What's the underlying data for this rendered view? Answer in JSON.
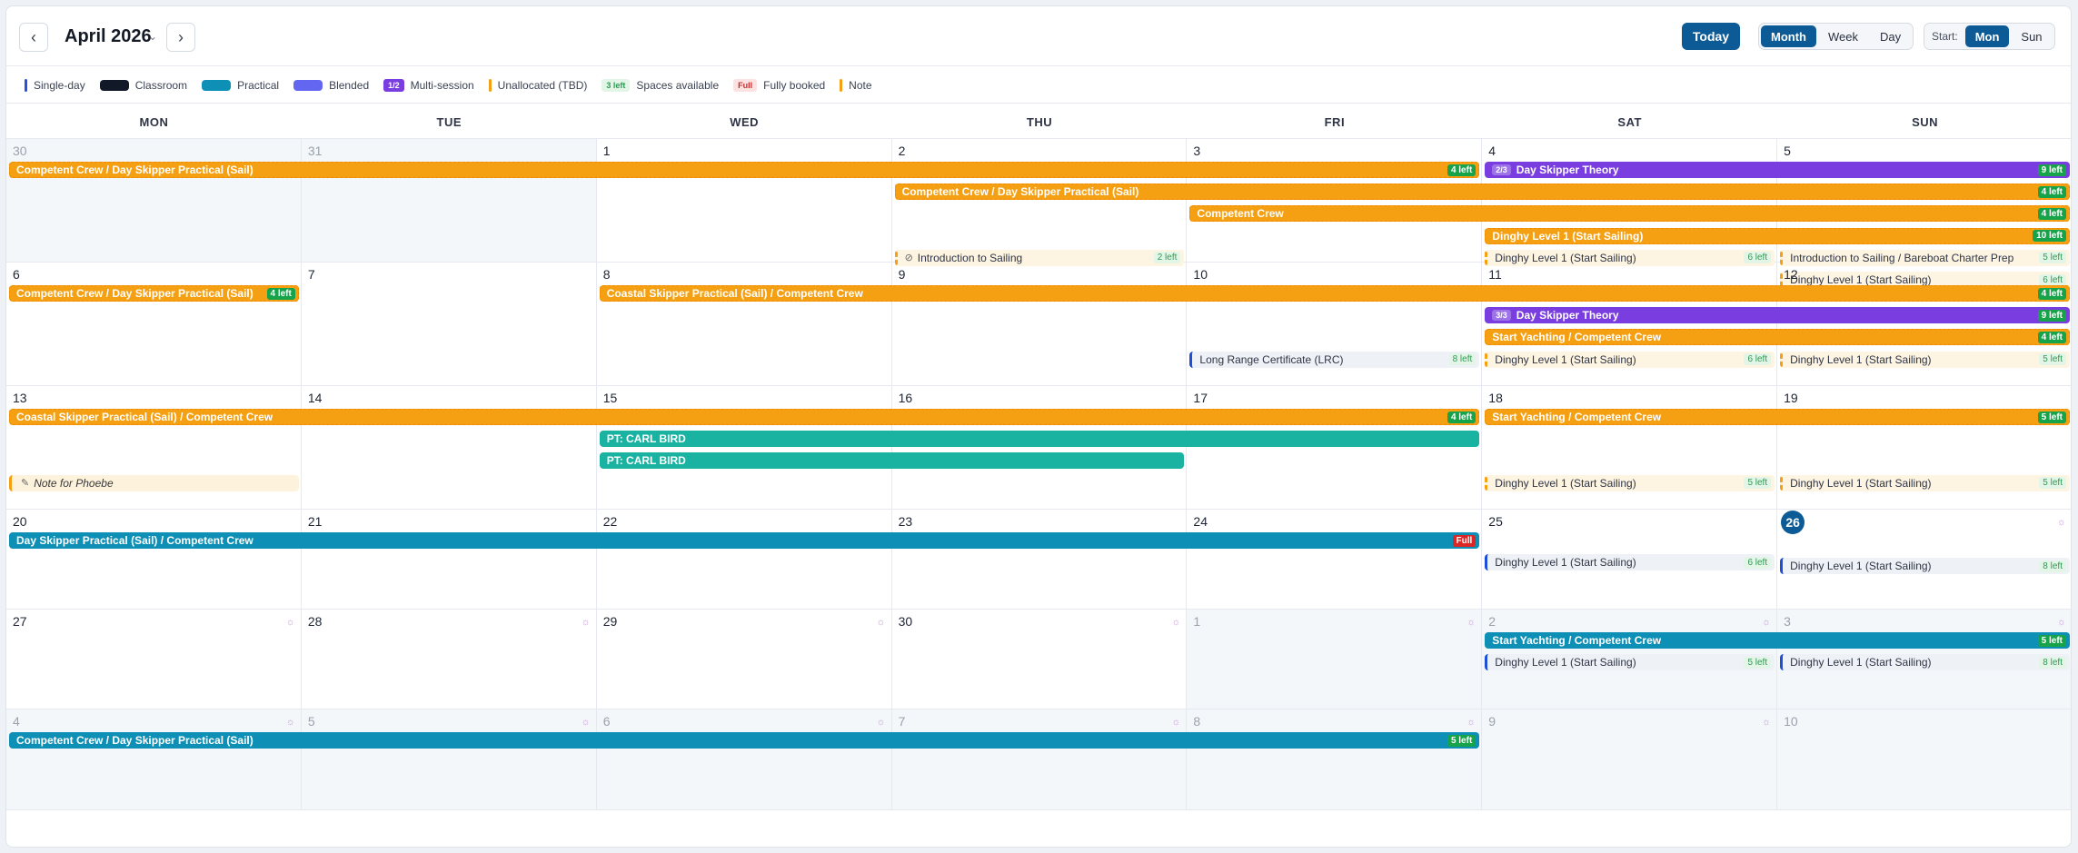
{
  "toolbar": {
    "prev_icon": "‹",
    "next_icon": "›",
    "month_title": "April 2026",
    "caret": "⌄",
    "today_label": "Today",
    "views": [
      "Month",
      "Week",
      "Day"
    ],
    "active_view": "Month",
    "start_label": "Start:",
    "start_options": [
      "Mon",
      "Sun"
    ],
    "active_start": "Mon"
  },
  "legend": [
    {
      "kind": "line",
      "color": "#2b4ee0",
      "label": "Single-day"
    },
    {
      "kind": "box",
      "color": "#111827",
      "label": "Classroom"
    },
    {
      "kind": "box",
      "color": "#0e8fb5",
      "label": "Practical"
    },
    {
      "kind": "box",
      "color": "#6366f1",
      "label": "Blended"
    },
    {
      "kind": "chip",
      "chip": "1/2",
      "bg": "#7a3de0",
      "fg": "#ffffff",
      "label": "Multi-session"
    },
    {
      "kind": "line",
      "color": "#f5a012",
      "label": "Unallocated (TBD)"
    },
    {
      "kind": "chip",
      "chip": "3 left",
      "bg": "#e3f5e7",
      "fg": "#2f9a53",
      "label": "Spaces available"
    },
    {
      "kind": "chip",
      "chip": "Full",
      "bg": "#fde2e2",
      "fg": "#c53030",
      "label": "Fully booked"
    },
    {
      "kind": "line",
      "color": "#f5a012",
      "label": "Note"
    }
  ],
  "weekdays": [
    "MON",
    "TUE",
    "WED",
    "THU",
    "FRI",
    "SAT",
    "SUN"
  ],
  "weeks": [
    {
      "days": [
        {
          "n": "30",
          "out": true
        },
        {
          "n": "31",
          "out": true
        },
        {
          "n": "1"
        },
        {
          "n": "2"
        },
        {
          "n": "3"
        },
        {
          "n": "4"
        },
        {
          "n": "5"
        }
      ],
      "events": [
        {
          "type": "bar",
          "color": "orange",
          "start": 0,
          "span": 5,
          "lane": 0,
          "title": "Competent Crew / Day Skipper Practical (Sail)",
          "badge": "4 left",
          "badgeType": "g"
        },
        {
          "type": "bar",
          "color": "purple",
          "start": 5,
          "span": 2,
          "lane": 0,
          "title": "Day Skipper Theory",
          "ms": "2/3",
          "badge": "9 left",
          "badgeType": "g"
        },
        {
          "type": "bar",
          "color": "orange",
          "start": 3,
          "span": 4,
          "lane": 1,
          "title": "Competent Crew / Day Skipper Practical (Sail)",
          "badge": "4 left",
          "badgeType": "g"
        },
        {
          "type": "bar",
          "color": "orange",
          "start": 4,
          "span": 3,
          "lane": 2,
          "title": "Competent Crew",
          "badge": "4 left",
          "badgeType": "g"
        },
        {
          "type": "bar",
          "color": "orange",
          "start": 5,
          "span": 2,
          "lane": 3,
          "title": "Dinghy Level 1 (Start Sailing)",
          "badge": "10 left",
          "badgeType": "g"
        },
        {
          "type": "single",
          "color": "sg-orange",
          "start": 3,
          "lane": 4,
          "title": "Introduction to Sailing",
          "eye": true,
          "badge": "2 left",
          "badgeType": "lg"
        },
        {
          "type": "single",
          "color": "sg-orange",
          "start": 5,
          "lane": 4,
          "title": "Dinghy Level 1 (Start Sailing)",
          "badge": "6 left",
          "badgeType": "lg"
        },
        {
          "type": "single",
          "color": "sg-orange",
          "start": 6,
          "lane": 4,
          "title": "Introduction to Sailing / Bareboat Charter Prep",
          "badge": "5 left",
          "badgeType": "lg"
        },
        {
          "type": "single",
          "color": "sg-orange",
          "start": 6,
          "lane": 5,
          "title": "Dinghy Level 1 (Start Sailing)",
          "badge": "6 left",
          "badgeType": "lg"
        }
      ]
    },
    {
      "days": [
        {
          "n": "6"
        },
        {
          "n": "7"
        },
        {
          "n": "8"
        },
        {
          "n": "9"
        },
        {
          "n": "10"
        },
        {
          "n": "11"
        },
        {
          "n": "12"
        }
      ],
      "events": [
        {
          "type": "bar",
          "color": "orange",
          "start": 0,
          "span": 1,
          "lane": 0,
          "title": "Competent Crew / Day Skipper Practical (Sail)",
          "badge": "4 left",
          "badgeType": "g"
        },
        {
          "type": "bar",
          "color": "orange",
          "start": 2,
          "span": 5,
          "lane": 0,
          "title": "Coastal Skipper Practical (Sail) / Competent Crew",
          "badge": "4 left",
          "badgeType": "g"
        },
        {
          "type": "bar",
          "color": "purple",
          "start": 5,
          "span": 2,
          "lane": 1,
          "title": "Day Skipper Theory",
          "ms": "3/3",
          "badge": "9 left",
          "badgeType": "g"
        },
        {
          "type": "bar",
          "color": "orange",
          "start": 5,
          "span": 2,
          "lane": 2,
          "title": "Start Yachting / Competent Crew",
          "badge": "4 left",
          "badgeType": "g"
        },
        {
          "type": "single",
          "color": "sg-blue",
          "start": 4,
          "lane": 3,
          "title": "Long Range Certificate (LRC)",
          "badge": "8 left",
          "badgeType": "lg"
        },
        {
          "type": "single",
          "color": "sg-orange",
          "start": 5,
          "lane": 3,
          "title": "Dinghy Level 1 (Start Sailing)",
          "badge": "6 left",
          "badgeType": "lg"
        },
        {
          "type": "single",
          "color": "sg-orange",
          "start": 6,
          "lane": 3,
          "title": "Dinghy Level 1 (Start Sailing)",
          "badge": "5 left",
          "badgeType": "lg"
        }
      ]
    },
    {
      "days": [
        {
          "n": "13"
        },
        {
          "n": "14"
        },
        {
          "n": "15"
        },
        {
          "n": "16"
        },
        {
          "n": "17"
        },
        {
          "n": "18"
        },
        {
          "n": "19"
        }
      ],
      "events": [
        {
          "type": "bar",
          "color": "orange",
          "start": 0,
          "span": 5,
          "lane": 0,
          "title": "Coastal Skipper Practical (Sail) / Competent Crew",
          "badge": "4 left",
          "badgeType": "g"
        },
        {
          "type": "bar",
          "color": "orange",
          "start": 5,
          "span": 2,
          "lane": 0,
          "title": "Start Yachting / Competent Crew",
          "badge": "5 left",
          "badgeType": "g"
        },
        {
          "type": "bar",
          "color": "teal",
          "start": 2,
          "span": 3,
          "lane": 1,
          "title": "PT: CARL BIRD"
        },
        {
          "type": "bar",
          "color": "teal",
          "start": 2,
          "span": 2,
          "lane": 2,
          "title": "PT: CARL BIRD"
        },
        {
          "type": "note",
          "start": 0,
          "lane": 3,
          "title": "Note for Phoebe"
        },
        {
          "type": "single",
          "color": "sg-orange",
          "start": 5,
          "lane": 3,
          "title": "Dinghy Level 1 (Start Sailing)",
          "badge": "5 left",
          "badgeType": "lg"
        },
        {
          "type": "single",
          "color": "sg-orange",
          "start": 6,
          "lane": 3,
          "title": "Dinghy Level 1 (Start Sailing)",
          "badge": "5 left",
          "badgeType": "lg"
        }
      ]
    },
    {
      "days": [
        {
          "n": "20"
        },
        {
          "n": "21"
        },
        {
          "n": "22"
        },
        {
          "n": "23"
        },
        {
          "n": "24"
        },
        {
          "n": "25"
        },
        {
          "n": "26",
          "today": true,
          "icon": true
        }
      ],
      "events": [
        {
          "type": "bar",
          "color": "blue",
          "start": 0,
          "span": 5,
          "lane": 0,
          "title": "Day Skipper Practical (Sail) / Competent Crew",
          "badge": "Full",
          "badgeType": "r"
        },
        {
          "type": "single",
          "color": "sg-blue",
          "start": 5,
          "lane": 1,
          "title": "Dinghy Level 1 (Start Sailing)",
          "badge": "6 left",
          "badgeType": "lg"
        },
        {
          "type": "single",
          "color": "sg-blue",
          "start": 6,
          "lane": 1,
          "title": "Dinghy Level 1 (Start Sailing)",
          "badge": "8 left",
          "badgeType": "lg",
          "dy": 4
        }
      ]
    },
    {
      "days": [
        {
          "n": "27",
          "icon": true
        },
        {
          "n": "28",
          "icon": true
        },
        {
          "n": "29",
          "icon": true
        },
        {
          "n": "30",
          "icon": true
        },
        {
          "n": "1",
          "out": true,
          "icon": true
        },
        {
          "n": "2",
          "out": true,
          "icon": true
        },
        {
          "n": "3",
          "out": true,
          "icon": true
        }
      ],
      "events": [
        {
          "type": "bar",
          "color": "blue",
          "start": 5,
          "span": 2,
          "lane": 0,
          "title": "Start Yachting / Competent Crew",
          "badge": "5 left",
          "badgeType": "g"
        },
        {
          "type": "single",
          "color": "sg-blue",
          "start": 5,
          "lane": 1,
          "title": "Dinghy Level 1 (Start Sailing)",
          "badge": "5 left",
          "badgeType": "lg"
        },
        {
          "type": "single",
          "color": "sg-blue",
          "start": 6,
          "lane": 1,
          "title": "Dinghy Level 1 (Start Sailing)",
          "badge": "8 left",
          "badgeType": "lg"
        }
      ]
    },
    {
      "days": [
        {
          "n": "4",
          "out": true,
          "icon": true
        },
        {
          "n": "5",
          "out": true,
          "icon": true
        },
        {
          "n": "6",
          "out": true,
          "icon": true
        },
        {
          "n": "7",
          "out": true,
          "icon": true
        },
        {
          "n": "8",
          "out": true,
          "icon": true
        },
        {
          "n": "9",
          "out": true,
          "icon": true
        },
        {
          "n": "10",
          "out": true
        }
      ],
      "events": [
        {
          "type": "bar",
          "color": "blue",
          "start": 0,
          "span": 5,
          "lane": 0,
          "title": "Competent Crew / Day Skipper Practical (Sail)",
          "badge": "5 left",
          "badgeType": "g"
        }
      ]
    }
  ],
  "weather_icon": "☼",
  "eye_icon": "⊘",
  "note_icon": "✎"
}
